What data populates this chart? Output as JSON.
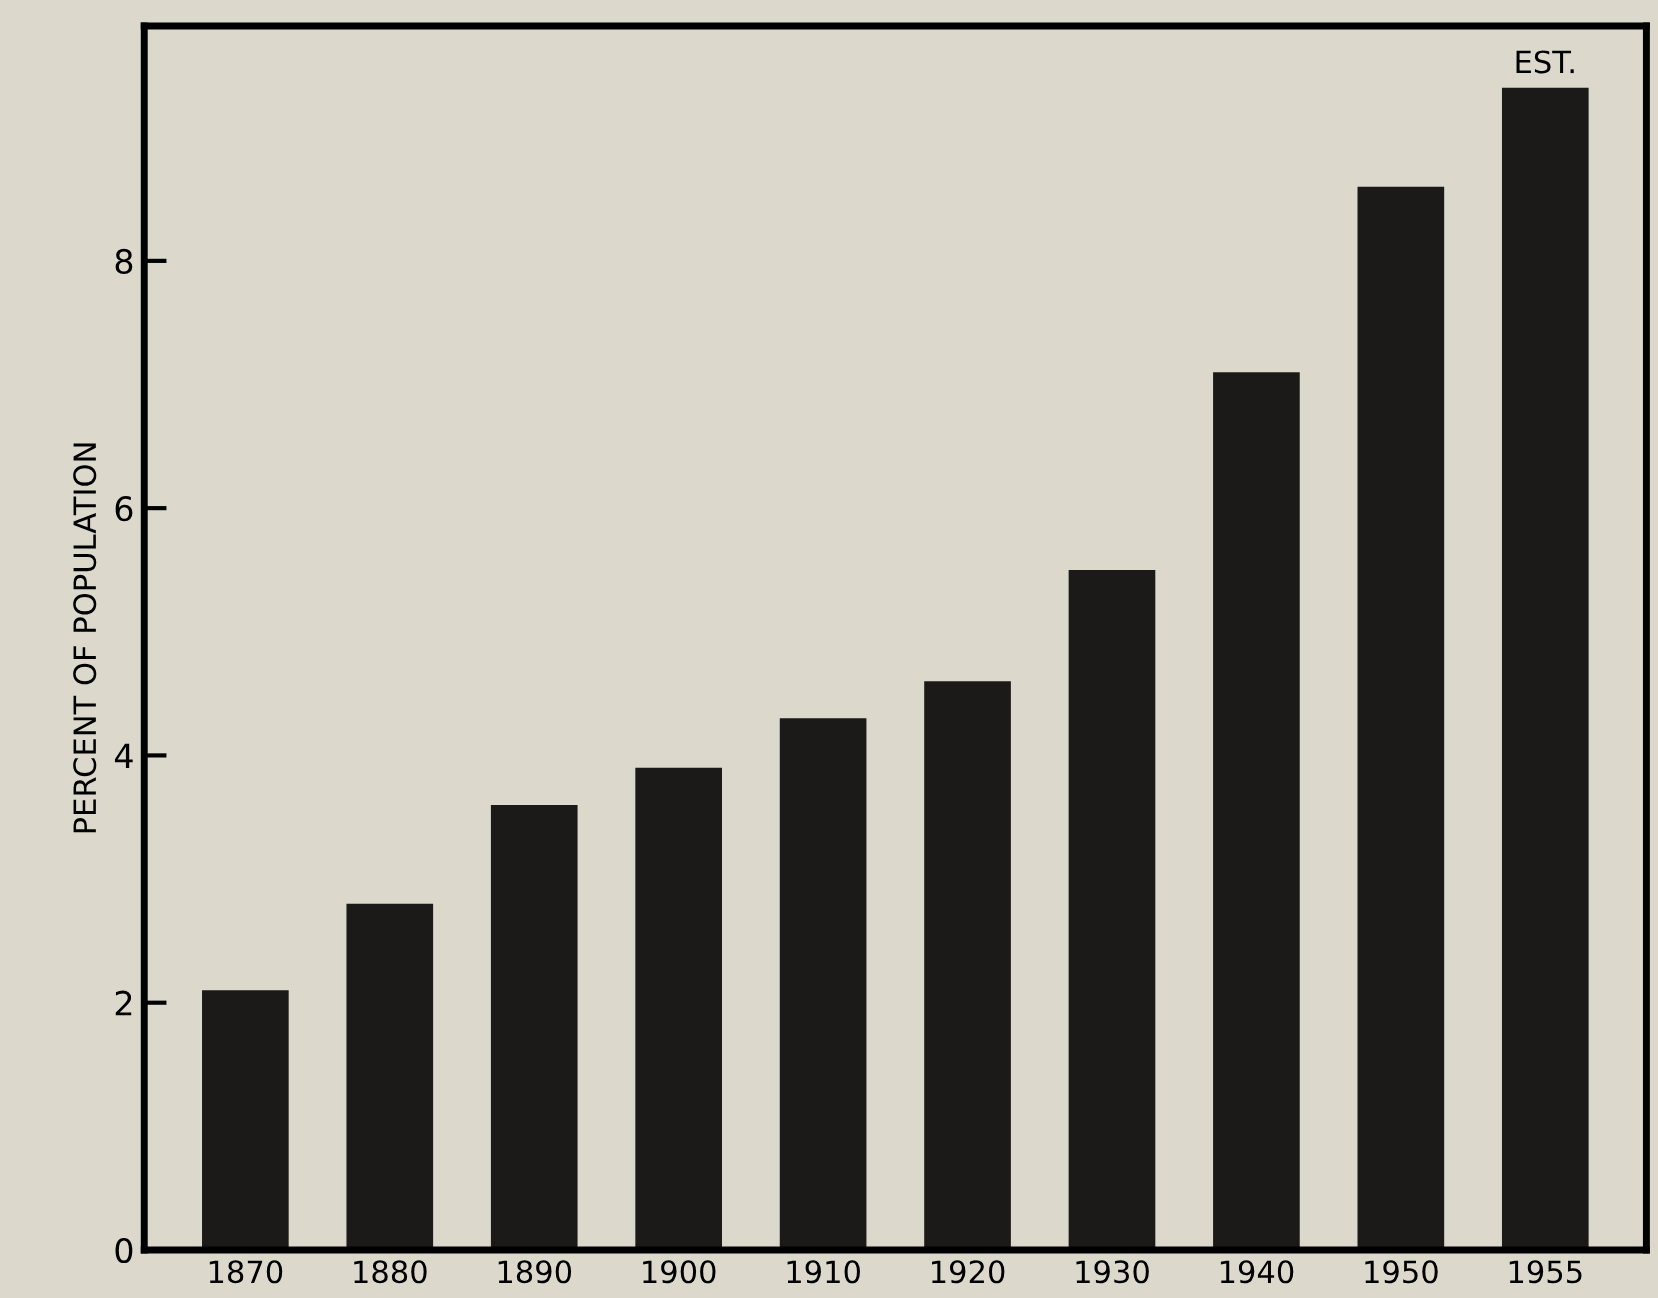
{
  "chart_data": {
    "type": "bar",
    "ylabel": "PERCENT OF POPULATION",
    "categories": [
      "1870",
      "1880",
      "1890",
      "1900",
      "1910",
      "1920",
      "1930",
      "1940",
      "1950",
      "1955"
    ],
    "values": [
      2.1,
      2.8,
      3.6,
      3.9,
      4.3,
      4.6,
      5.5,
      7.1,
      8.6,
      9.4
    ],
    "color": "#1c1a18",
    "ylim": [
      0,
      9.9
    ],
    "yticks": [
      0,
      2,
      4,
      6,
      8
    ],
    "grid": false,
    "annotations": [
      {
        "text": "EST.",
        "x": "1955",
        "y": 9.4
      }
    ]
  }
}
